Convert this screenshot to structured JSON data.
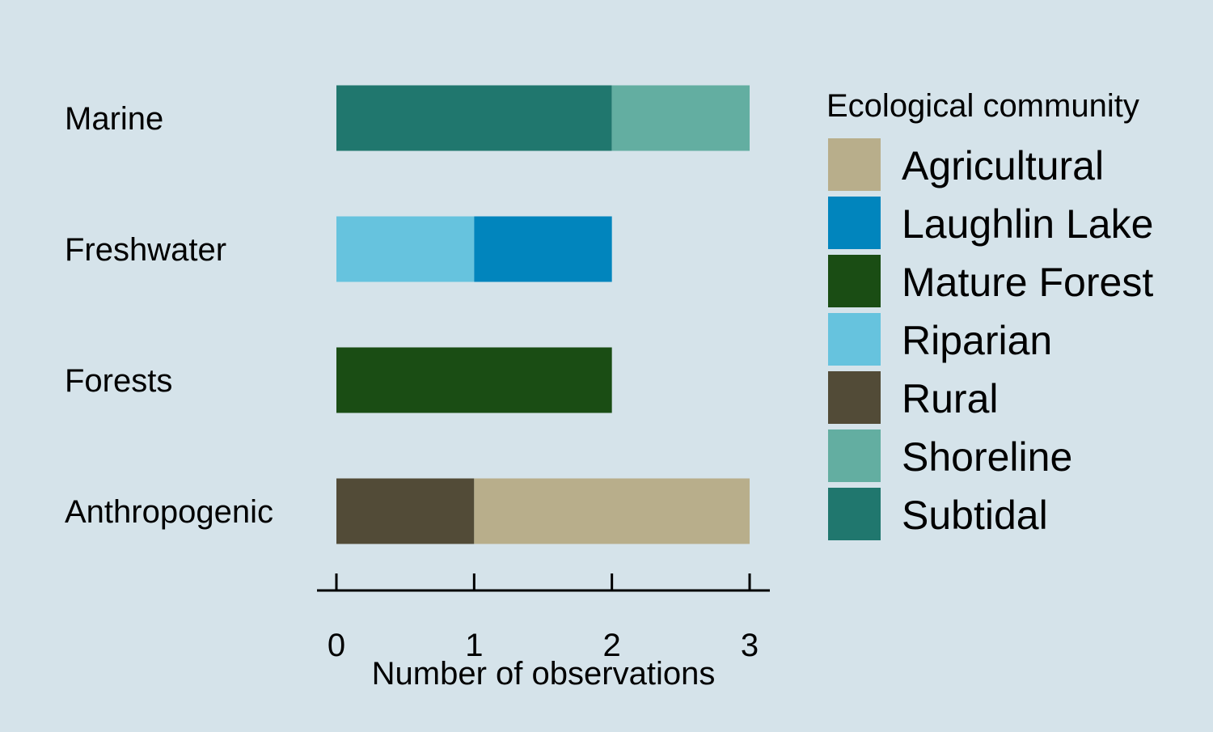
{
  "chart_data": {
    "type": "bar",
    "orientation": "horizontal",
    "stacked": true,
    "categories": [
      "Marine",
      "Freshwater",
      "Forests",
      "Anthropogenic"
    ],
    "series": [
      {
        "name": "Subtidal",
        "color": "#20776e",
        "values": [
          2,
          0,
          0,
          0
        ]
      },
      {
        "name": "Shoreline",
        "color": "#63aea1",
        "values": [
          1,
          0,
          0,
          0
        ]
      },
      {
        "name": "Riparian",
        "color": "#66c3de",
        "values": [
          0,
          1,
          0,
          0
        ]
      },
      {
        "name": "Laughlin Lake",
        "color": "#0185bd",
        "values": [
          0,
          1,
          0,
          0
        ]
      },
      {
        "name": "Mature Forest",
        "color": "#1a4d14",
        "values": [
          0,
          0,
          2,
          0
        ]
      },
      {
        "name": "Rural",
        "color": "#524b37",
        "values": [
          0,
          0,
          0,
          1
        ]
      },
      {
        "name": "Agricultural",
        "color": "#b8ae8b",
        "values": [
          0,
          0,
          0,
          2
        ]
      }
    ],
    "xlabel": "Number of observations",
    "ylabel": "",
    "xlim": [
      0,
      3
    ],
    "xticks": [
      "0",
      "1",
      "2",
      "3"
    ],
    "grid": false,
    "legend": {
      "title": "Ecological community",
      "placement": "right",
      "items": [
        {
          "label": "Agricultural",
          "color": "#b8ae8b"
        },
        {
          "label": "Laughlin Lake",
          "color": "#0185bd"
        },
        {
          "label": "Mature Forest",
          "color": "#1a4d14"
        },
        {
          "label": "Riparian",
          "color": "#66c3de"
        },
        {
          "label": "Rural",
          "color": "#524b37"
        },
        {
          "label": "Shoreline",
          "color": "#63aea1"
        },
        {
          "label": "Subtidal",
          "color": "#20776e"
        }
      ]
    },
    "background_color": "#d5e3ea"
  }
}
